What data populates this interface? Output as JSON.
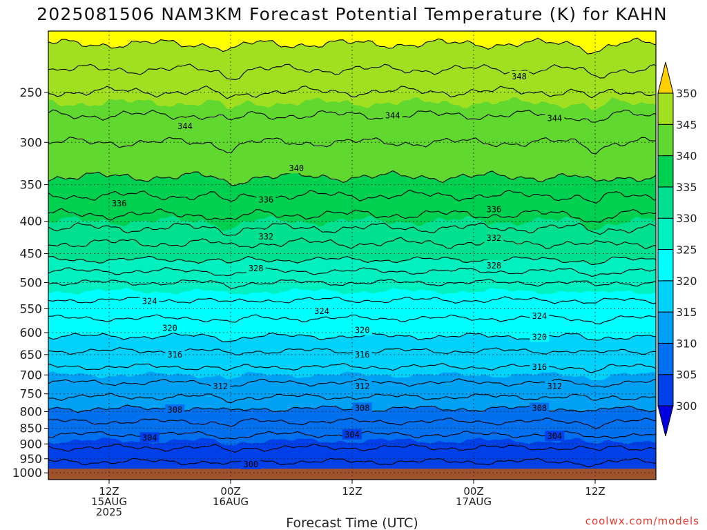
{
  "chart_data": {
    "type": "heatmap",
    "title": "2025081506 NAM3KM Forecast Potential Temperature (K) for KAHN",
    "xlabel": "Forecast Time (UTC)",
    "ylabel": "",
    "y_ticks": [
      "250",
      "300",
      "350",
      "400",
      "450",
      "500",
      "550",
      "600",
      "650",
      "700",
      "750",
      "800",
      "850",
      "900",
      "950",
      "1000"
    ],
    "y_tick_values": [
      250,
      300,
      350,
      400,
      450,
      500,
      550,
      600,
      650,
      700,
      750,
      800,
      850,
      900,
      950,
      1000
    ],
    "y_log_scale": true,
    "y_inverted": true,
    "ylim": [
      200,
      1025
    ],
    "x_range_hours": [
      6,
      66
    ],
    "x_ticks": [
      {
        "hour": 12,
        "lines": [
          "12Z",
          "15AUG",
          "2025"
        ]
      },
      {
        "hour": 24,
        "lines": [
          "00Z",
          "16AUG"
        ]
      },
      {
        "hour": 36,
        "lines": [
          "12Z"
        ]
      },
      {
        "hour": 48,
        "lines": [
          "00Z",
          "17AUG"
        ]
      },
      {
        "hour": 60,
        "lines": [
          "12Z"
        ]
      }
    ],
    "grid": true,
    "colorbar": {
      "levels": [
        "300",
        "305",
        "310",
        "315",
        "320",
        "325",
        "330",
        "335",
        "340",
        "345",
        "350"
      ],
      "level_values": [
        300,
        305,
        310,
        315,
        320,
        325,
        330,
        335,
        340,
        345,
        350
      ],
      "colors": [
        "#0000e0",
        "#0040e8",
        "#0070ee",
        "#00a0f5",
        "#00d2fb",
        "#00ffff",
        "#00f0c0",
        "#00e090",
        "#00d050",
        "#60d830",
        "#a0e020",
        "#ffff00",
        "#ffd000"
      ],
      "extend": "both",
      "position": "right"
    },
    "contour_interval": 2,
    "contour_levels": [
      300,
      302,
      304,
      306,
      308,
      310,
      312,
      314,
      316,
      318,
      320,
      322,
      324,
      326,
      328,
      330,
      332,
      334,
      336,
      338,
      340,
      342,
      344,
      346,
      348,
      350
    ],
    "theta_profile": [
      {
        "p": 200,
        "theta": 351
      },
      {
        "p": 230,
        "theta": 348
      },
      {
        "p": 265,
        "theta": 344.5
      },
      {
        "p": 300,
        "theta": 342
      },
      {
        "p": 340,
        "theta": 340
      },
      {
        "p": 390,
        "theta": 336
      },
      {
        "p": 420,
        "theta": 333
      },
      {
        "p": 460,
        "theta": 330
      },
      {
        "p": 500,
        "theta": 326
      },
      {
        "p": 550,
        "theta": 323
      },
      {
        "p": 600,
        "theta": 320.5
      },
      {
        "p": 650,
        "theta": 317.5
      },
      {
        "p": 700,
        "theta": 315
      },
      {
        "p": 750,
        "theta": 312.5
      },
      {
        "p": 800,
        "theta": 309.5
      },
      {
        "p": 850,
        "theta": 307
      },
      {
        "p": 900,
        "theta": 304.5
      },
      {
        "p": 950,
        "theta": 302.5
      },
      {
        "p": 1000,
        "theta": 300
      }
    ],
    "contour_labels": [
      {
        "text": "348",
        "hour": 52.5,
        "p": 236
      },
      {
        "text": "344",
        "hour": 19.5,
        "p": 283
      },
      {
        "text": "344",
        "hour": 40.0,
        "p": 272
      },
      {
        "text": "344",
        "hour": 56.0,
        "p": 275
      },
      {
        "text": "340",
        "hour": 30.5,
        "p": 330
      },
      {
        "text": "336",
        "hour": 13.0,
        "p": 375
      },
      {
        "text": "336",
        "hour": 27.5,
        "p": 370
      },
      {
        "text": "336",
        "hour": 50.0,
        "p": 383
      },
      {
        "text": "332",
        "hour": 27.5,
        "p": 423
      },
      {
        "text": "332",
        "hour": 50.0,
        "p": 425
      },
      {
        "text": "328",
        "hour": 26.5,
        "p": 475
      },
      {
        "text": "328",
        "hour": 50.0,
        "p": 470
      },
      {
        "text": "324",
        "hour": 16.0,
        "p": 535
      },
      {
        "text": "324",
        "hour": 33.0,
        "p": 555
      },
      {
        "text": "324",
        "hour": 54.5,
        "p": 565
      },
      {
        "text": "320",
        "hour": 18.0,
        "p": 590
      },
      {
        "text": "320",
        "hour": 37.0,
        "p": 595
      },
      {
        "text": "320",
        "hour": 54.5,
        "p": 610
      },
      {
        "text": "316",
        "hour": 18.5,
        "p": 650
      },
      {
        "text": "316",
        "hour": 37.0,
        "p": 650
      },
      {
        "text": "316",
        "hour": 54.5,
        "p": 680
      },
      {
        "text": "312",
        "hour": 23.0,
        "p": 730
      },
      {
        "text": "312",
        "hour": 37.0,
        "p": 730
      },
      {
        "text": "312",
        "hour": 56.0,
        "p": 730
      },
      {
        "text": "308",
        "hour": 18.5,
        "p": 795
      },
      {
        "text": "308",
        "hour": 37.0,
        "p": 790
      },
      {
        "text": "308",
        "hour": 54.5,
        "p": 790
      },
      {
        "text": "304",
        "hour": 16.0,
        "p": 880
      },
      {
        "text": "304",
        "hour": 36.0,
        "p": 870
      },
      {
        "text": "304",
        "hour": 56.0,
        "p": 875
      },
      {
        "text": "300",
        "hour": 26.0,
        "p": 970
      }
    ],
    "terrain": {
      "surface_p": 985,
      "color": "#a0522d"
    }
  },
  "credit": "coolwx.com/models"
}
